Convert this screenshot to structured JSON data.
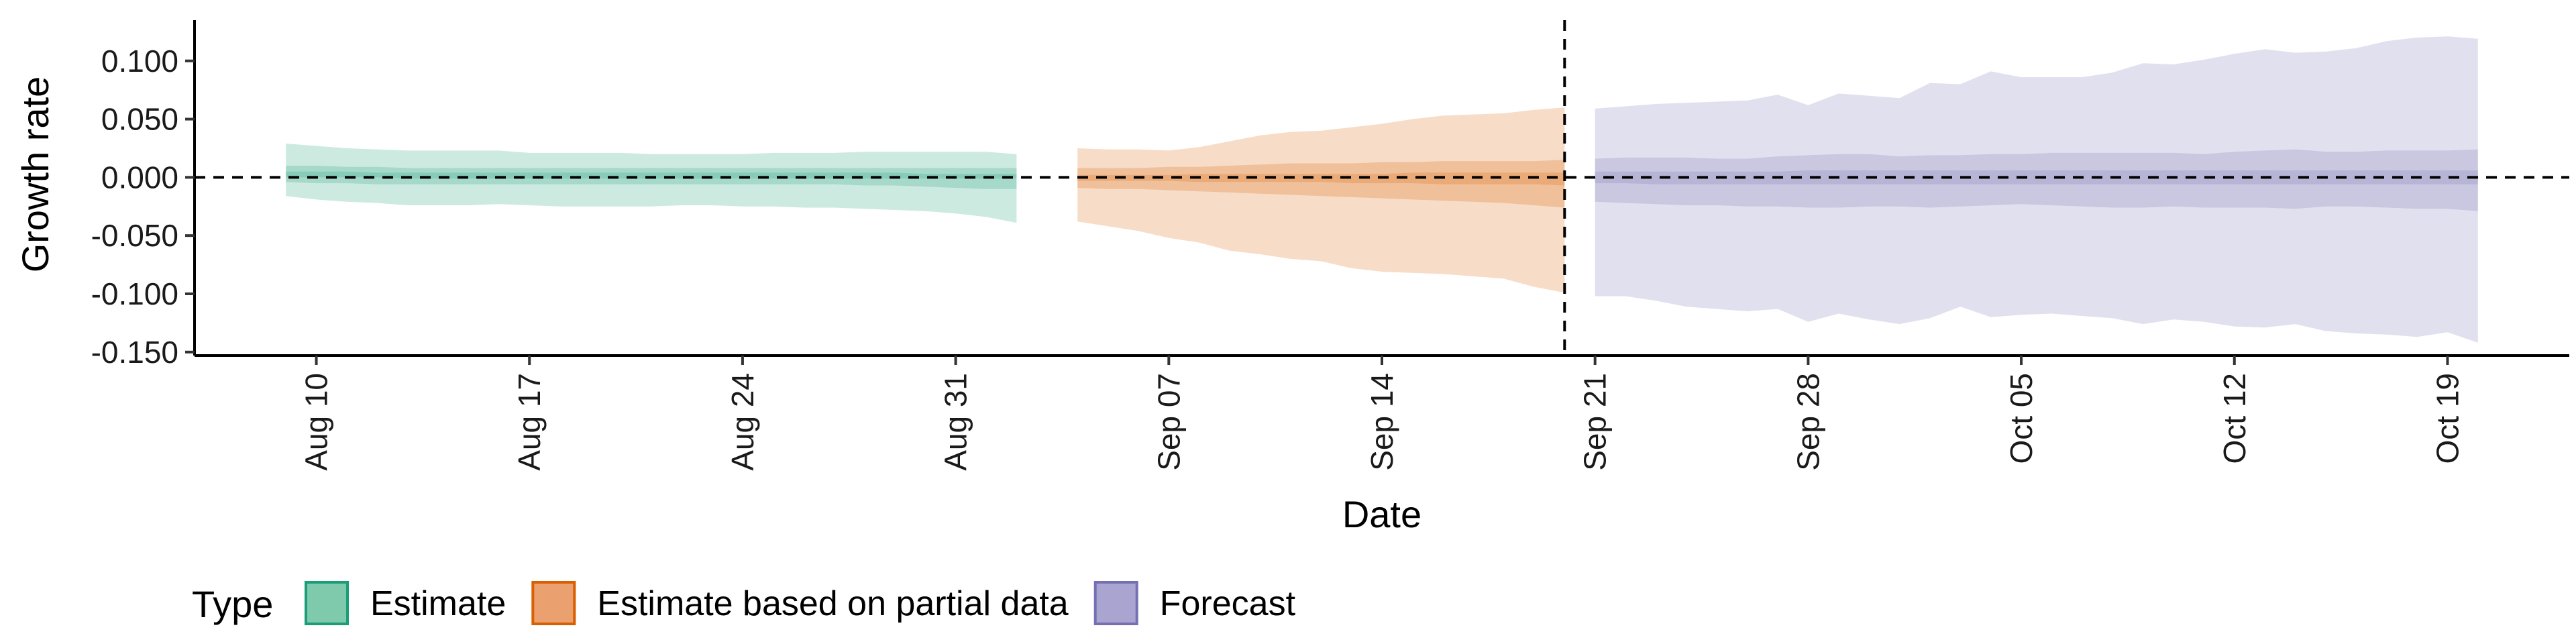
{
  "chart_data": {
    "type": "area",
    "xlabel": "Date",
    "ylabel": "Growth rate",
    "xlim": [
      "2020-08-06",
      "2020-10-23"
    ],
    "ylim": [
      -0.153,
      0.135
    ],
    "yticks": [
      0.1,
      0.05,
      0.0,
      -0.05,
      -0.1,
      -0.15
    ],
    "ytick_labels": [
      "0.100",
      "0.050",
      "0.000",
      "-0.050",
      "-0.100",
      "-0.150"
    ],
    "xticks": [
      "2020-08-10",
      "2020-08-17",
      "2020-08-24",
      "2020-08-31",
      "2020-09-07",
      "2020-09-14",
      "2020-09-21",
      "2020-09-28",
      "2020-10-05",
      "2020-10-12",
      "2020-10-19"
    ],
    "xtick_labels": [
      "Aug 10",
      "Aug 17",
      "Aug 24",
      "Aug 31",
      "Sep 07",
      "Sep 14",
      "Sep 21",
      "Sep 28",
      "Oct 05",
      "Oct 12",
      "Oct 19"
    ],
    "reference_lines": {
      "horizontal_y": 0.0,
      "vertical_date": "2020-09-20"
    },
    "legend": {
      "title": "Type",
      "position": "bottom-left",
      "entries": [
        {
          "label": "Estimate",
          "fill": "#7fc9ad",
          "stroke": "#1b9e77"
        },
        {
          "label": "Estimate based on partial data",
          "fill": "#eba06f",
          "stroke": "#d95f02"
        },
        {
          "label": "Forecast",
          "fill": "#aaa5d0",
          "stroke": "#7570b3"
        }
      ]
    },
    "series": [
      {
        "name": "Estimate",
        "color": "#1b9e77",
        "dates": [
          "2020-08-09",
          "2020-08-10",
          "2020-08-11",
          "2020-08-12",
          "2020-08-13",
          "2020-08-14",
          "2020-08-15",
          "2020-08-16",
          "2020-08-17",
          "2020-08-18",
          "2020-08-19",
          "2020-08-20",
          "2020-08-21",
          "2020-08-22",
          "2020-08-23",
          "2020-08-24",
          "2020-08-25",
          "2020-08-26",
          "2020-08-27",
          "2020-08-28",
          "2020-08-29",
          "2020-08-30",
          "2020-08-31",
          "2020-09-01",
          "2020-09-02"
        ],
        "lower_90": [
          -0.016,
          -0.019,
          -0.021,
          -0.022,
          -0.024,
          -0.024,
          -0.024,
          -0.023,
          -0.024,
          -0.025,
          -0.025,
          -0.025,
          -0.025,
          -0.024,
          -0.024,
          -0.025,
          -0.025,
          -0.026,
          -0.026,
          -0.027,
          -0.028,
          -0.029,
          -0.031,
          -0.034,
          -0.039
        ],
        "upper_90": [
          0.029,
          0.027,
          0.025,
          0.024,
          0.023,
          0.023,
          0.023,
          0.023,
          0.021,
          0.021,
          0.021,
          0.021,
          0.02,
          0.02,
          0.02,
          0.02,
          0.021,
          0.021,
          0.021,
          0.022,
          0.022,
          0.022,
          0.022,
          0.022,
          0.02
        ],
        "lower_50": [
          -0.004,
          -0.005,
          -0.005,
          -0.006,
          -0.006,
          -0.006,
          -0.006,
          -0.006,
          -0.006,
          -0.006,
          -0.006,
          -0.006,
          -0.006,
          -0.006,
          -0.006,
          -0.006,
          -0.006,
          -0.006,
          -0.006,
          -0.007,
          -0.007,
          -0.008,
          -0.009,
          -0.01,
          -0.01
        ],
        "upper_50": [
          0.01,
          0.01,
          0.009,
          0.009,
          0.008,
          0.008,
          0.008,
          0.008,
          0.008,
          0.008,
          0.008,
          0.008,
          0.008,
          0.008,
          0.008,
          0.008,
          0.008,
          0.008,
          0.008,
          0.008,
          0.008,
          0.008,
          0.008,
          0.008,
          0.008
        ],
        "lower_20": [
          0.0,
          0.0,
          0.0,
          0.0,
          -0.001,
          -0.001,
          -0.001,
          -0.001,
          -0.001,
          -0.001,
          -0.001,
          -0.001,
          -0.001,
          -0.001,
          -0.001,
          -0.001,
          -0.001,
          -0.001,
          -0.001,
          -0.001,
          -0.001,
          -0.001,
          -0.001,
          -0.001,
          -0.001
        ],
        "upper_20": [
          0.005,
          0.005,
          0.005,
          0.004,
          0.004,
          0.004,
          0.004,
          0.004,
          0.004,
          0.004,
          0.004,
          0.004,
          0.004,
          0.004,
          0.004,
          0.004,
          0.004,
          0.004,
          0.004,
          0.004,
          0.004,
          0.003,
          0.003,
          0.003,
          0.003
        ]
      },
      {
        "name": "Estimate based on partial data",
        "color": "#d95f02",
        "dates": [
          "2020-09-04",
          "2020-09-05",
          "2020-09-06",
          "2020-09-07",
          "2020-09-08",
          "2020-09-09",
          "2020-09-10",
          "2020-09-11",
          "2020-09-12",
          "2020-09-13",
          "2020-09-14",
          "2020-09-15",
          "2020-09-16",
          "2020-09-17",
          "2020-09-18",
          "2020-09-19",
          "2020-09-20"
        ],
        "lower_90": [
          -0.038,
          -0.042,
          -0.046,
          -0.052,
          -0.056,
          -0.063,
          -0.066,
          -0.07,
          -0.072,
          -0.078,
          -0.081,
          -0.082,
          -0.083,
          -0.085,
          -0.087,
          -0.094,
          -0.099
        ],
        "upper_90": [
          0.025,
          0.024,
          0.024,
          0.023,
          0.026,
          0.031,
          0.036,
          0.039,
          0.04,
          0.043,
          0.046,
          0.05,
          0.053,
          0.054,
          0.055,
          0.058,
          0.06
        ],
        "lower_50": [
          -0.009,
          -0.01,
          -0.01,
          -0.011,
          -0.012,
          -0.013,
          -0.014,
          -0.015,
          -0.016,
          -0.017,
          -0.018,
          -0.019,
          -0.02,
          -0.021,
          -0.022,
          -0.024,
          -0.026
        ],
        "upper_50": [
          0.008,
          0.008,
          0.008,
          0.009,
          0.009,
          0.01,
          0.011,
          0.012,
          0.012,
          0.012,
          0.013,
          0.013,
          0.014,
          0.014,
          0.014,
          0.014,
          0.015
        ],
        "lower_20": [
          -0.003,
          -0.003,
          -0.003,
          -0.003,
          -0.004,
          -0.004,
          -0.004,
          -0.004,
          -0.004,
          -0.005,
          -0.005,
          -0.005,
          -0.006,
          -0.006,
          -0.006,
          -0.006,
          -0.007
        ],
        "upper_20": [
          0.002,
          0.002,
          0.002,
          0.002,
          0.003,
          0.003,
          0.003,
          0.003,
          0.003,
          0.003,
          0.003,
          0.004,
          0.004,
          0.004,
          0.004,
          0.004,
          0.004
        ]
      },
      {
        "name": "Forecast",
        "color": "#7570b3",
        "dates": [
          "2020-09-21",
          "2020-09-22",
          "2020-09-23",
          "2020-09-24",
          "2020-09-25",
          "2020-09-26",
          "2020-09-27",
          "2020-09-28",
          "2020-09-29",
          "2020-09-30",
          "2020-10-01",
          "2020-10-02",
          "2020-10-03",
          "2020-10-04",
          "2020-10-05",
          "2020-10-06",
          "2020-10-07",
          "2020-10-08",
          "2020-10-09",
          "2020-10-10",
          "2020-10-11",
          "2020-10-12",
          "2020-10-13",
          "2020-10-14",
          "2020-10-15",
          "2020-10-16",
          "2020-10-17",
          "2020-10-18",
          "2020-10-19",
          "2020-10-20"
        ],
        "lower_90": [
          -0.102,
          -0.102,
          -0.106,
          -0.111,
          -0.113,
          -0.115,
          -0.113,
          -0.124,
          -0.117,
          -0.122,
          -0.126,
          -0.121,
          -0.111,
          -0.12,
          -0.118,
          -0.117,
          -0.119,
          -0.121,
          -0.126,
          -0.122,
          -0.124,
          -0.128,
          -0.129,
          -0.126,
          -0.132,
          -0.134,
          -0.135,
          -0.137,
          -0.133,
          -0.142
        ],
        "upper_90": [
          0.059,
          0.061,
          0.063,
          0.064,
          0.065,
          0.066,
          0.071,
          0.062,
          0.072,
          0.07,
          0.068,
          0.081,
          0.08,
          0.091,
          0.086,
          0.086,
          0.086,
          0.09,
          0.098,
          0.097,
          0.101,
          0.106,
          0.11,
          0.107,
          0.108,
          0.111,
          0.117,
          0.12,
          0.121,
          0.119
        ],
        "lower_50": [
          -0.021,
          -0.022,
          -0.023,
          -0.024,
          -0.024,
          -0.025,
          -0.025,
          -0.026,
          -0.026,
          -0.025,
          -0.025,
          -0.026,
          -0.025,
          -0.024,
          -0.023,
          -0.024,
          -0.025,
          -0.026,
          -0.026,
          -0.025,
          -0.026,
          -0.026,
          -0.026,
          -0.027,
          -0.025,
          -0.025,
          -0.026,
          -0.027,
          -0.027,
          -0.029
        ],
        "upper_50": [
          0.016,
          0.017,
          0.017,
          0.017,
          0.016,
          0.016,
          0.018,
          0.019,
          0.02,
          0.02,
          0.018,
          0.019,
          0.019,
          0.02,
          0.02,
          0.021,
          0.021,
          0.021,
          0.021,
          0.021,
          0.02,
          0.022,
          0.023,
          0.024,
          0.022,
          0.022,
          0.023,
          0.023,
          0.023,
          0.024
        ],
        "lower_20": [
          -0.005,
          -0.005,
          -0.006,
          -0.006,
          -0.006,
          -0.006,
          -0.006,
          -0.006,
          -0.006,
          -0.006,
          -0.006,
          -0.006,
          -0.006,
          -0.006,
          -0.006,
          -0.006,
          -0.006,
          -0.006,
          -0.006,
          -0.006,
          -0.006,
          -0.006,
          -0.006,
          -0.006,
          -0.006,
          -0.006,
          -0.006,
          -0.006,
          -0.006,
          -0.006
        ],
        "upper_20": [
          0.005,
          0.005,
          0.005,
          0.005,
          0.005,
          0.005,
          0.005,
          0.006,
          0.006,
          0.006,
          0.006,
          0.006,
          0.006,
          0.006,
          0.006,
          0.006,
          0.006,
          0.006,
          0.006,
          0.006,
          0.006,
          0.006,
          0.006,
          0.006,
          0.006,
          0.006,
          0.006,
          0.006,
          0.006,
          0.006
        ]
      }
    ]
  }
}
